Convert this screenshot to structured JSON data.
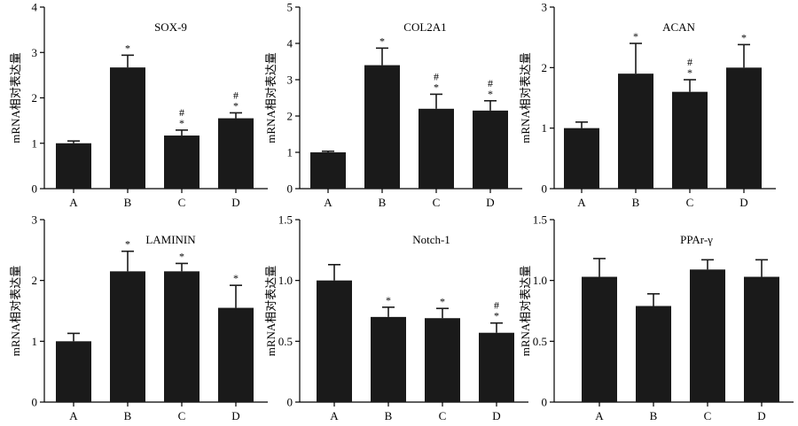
{
  "chart_data": [
    {
      "type": "bar",
      "title": "SOX-9",
      "ylabel": "mRNA相对表达量",
      "ylim": [
        0,
        4
      ],
      "yticks": [
        0,
        1,
        2,
        3,
        4
      ],
      "ytick_labels": [
        "0",
        "1",
        "2",
        "3",
        "4"
      ],
      "categories": [
        "A",
        "B",
        "C",
        "D"
      ],
      "values": [
        1.0,
        2.67,
        1.17,
        1.55
      ],
      "errors": [
        0.05,
        0.27,
        0.12,
        0.12
      ],
      "marks": [
        "",
        "*",
        "#\n*",
        "#\n*"
      ]
    },
    {
      "type": "bar",
      "title": "COL2A1",
      "ylabel": "mRNA相对表达量",
      "ylim": [
        0,
        5
      ],
      "yticks": [
        0,
        1,
        2,
        3,
        4,
        5
      ],
      "ytick_labels": [
        "0",
        "1",
        "2",
        "3",
        "4",
        "5"
      ],
      "categories": [
        "A",
        "B",
        "C",
        "D"
      ],
      "values": [
        1.0,
        3.4,
        2.2,
        2.15
      ],
      "errors": [
        0.03,
        0.47,
        0.4,
        0.27
      ],
      "marks": [
        "",
        "*",
        "#\n*",
        "#\n*"
      ]
    },
    {
      "type": "bar",
      "title": "ACAN",
      "ylabel": "mRNA相对表达量",
      "ylim": [
        0,
        3
      ],
      "yticks": [
        0,
        1,
        2,
        3
      ],
      "ytick_labels": [
        "0",
        "1",
        "2",
        "3"
      ],
      "categories": [
        "A",
        "B",
        "C",
        "D"
      ],
      "values": [
        1.0,
        1.9,
        1.6,
        2.0
      ],
      "errors": [
        0.1,
        0.5,
        0.2,
        0.38
      ],
      "marks": [
        "",
        "*",
        "#\n*",
        "*"
      ]
    },
    {
      "type": "bar",
      "title": "LAMININ",
      "ylabel": "mRNA相对表达量",
      "ylim": [
        0,
        3
      ],
      "yticks": [
        0,
        1,
        2,
        3
      ],
      "ytick_labels": [
        "0",
        "1",
        "2",
        "3"
      ],
      "categories": [
        "A",
        "B",
        "C",
        "D"
      ],
      "values": [
        1.0,
        2.15,
        2.15,
        1.55
      ],
      "errors": [
        0.13,
        0.33,
        0.13,
        0.37
      ],
      "marks": [
        "",
        "*",
        "*",
        "*"
      ]
    },
    {
      "type": "bar",
      "title": "Notch-1",
      "ylabel": "mRNA相对表达量",
      "ylim": [
        0,
        1.5
      ],
      "yticks": [
        0,
        0.5,
        1.0,
        1.5
      ],
      "ytick_labels": [
        "0",
        "0.5",
        "1.0",
        "1.5"
      ],
      "categories": [
        "A",
        "B",
        "C",
        "D"
      ],
      "values": [
        1.0,
        0.7,
        0.69,
        0.57
      ],
      "errors": [
        0.13,
        0.08,
        0.08,
        0.08
      ],
      "marks": [
        "",
        "*",
        "*",
        "#\n*"
      ]
    },
    {
      "type": "bar",
      "title": "PPAr-γ",
      "ylabel": "mRNA相对表达量",
      "ylim": [
        0,
        1.5
      ],
      "yticks": [
        0,
        0.5,
        1.0,
        1.5
      ],
      "ytick_labels": [
        "0",
        "0.5",
        "1.0",
        "1.5"
      ],
      "categories": [
        "A",
        "B",
        "C",
        "D"
      ],
      "values": [
        1.03,
        0.79,
        1.09,
        1.03
      ],
      "errors": [
        0.15,
        0.1,
        0.08,
        0.14
      ],
      "marks": [
        "",
        "",
        "",
        ""
      ]
    }
  ]
}
